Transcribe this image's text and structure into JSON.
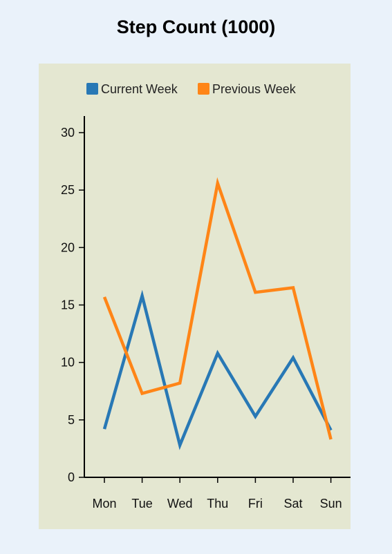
{
  "chart_data": {
    "type": "line",
    "title": "Step Count (1000)",
    "xlabel": "",
    "ylabel": "",
    "categories": [
      "Mon",
      "Tue",
      "Wed",
      "Thu",
      "Fri",
      "Sat",
      "Sun"
    ],
    "series": [
      {
        "name": "Current Week",
        "color": "#2878b5",
        "values": [
          4.2,
          15.8,
          2.8,
          10.8,
          5.3,
          10.4,
          4.1
        ]
      },
      {
        "name": "Previous Week",
        "color": "#ff8517",
        "values": [
          15.7,
          7.3,
          8.2,
          25.6,
          16.1,
          16.5,
          3.3
        ]
      }
    ],
    "ylim": [
      0,
      30
    ],
    "yticks": [
      0,
      5,
      10,
      15,
      20,
      25,
      30
    ],
    "grid": false,
    "legend_position": "top"
  }
}
